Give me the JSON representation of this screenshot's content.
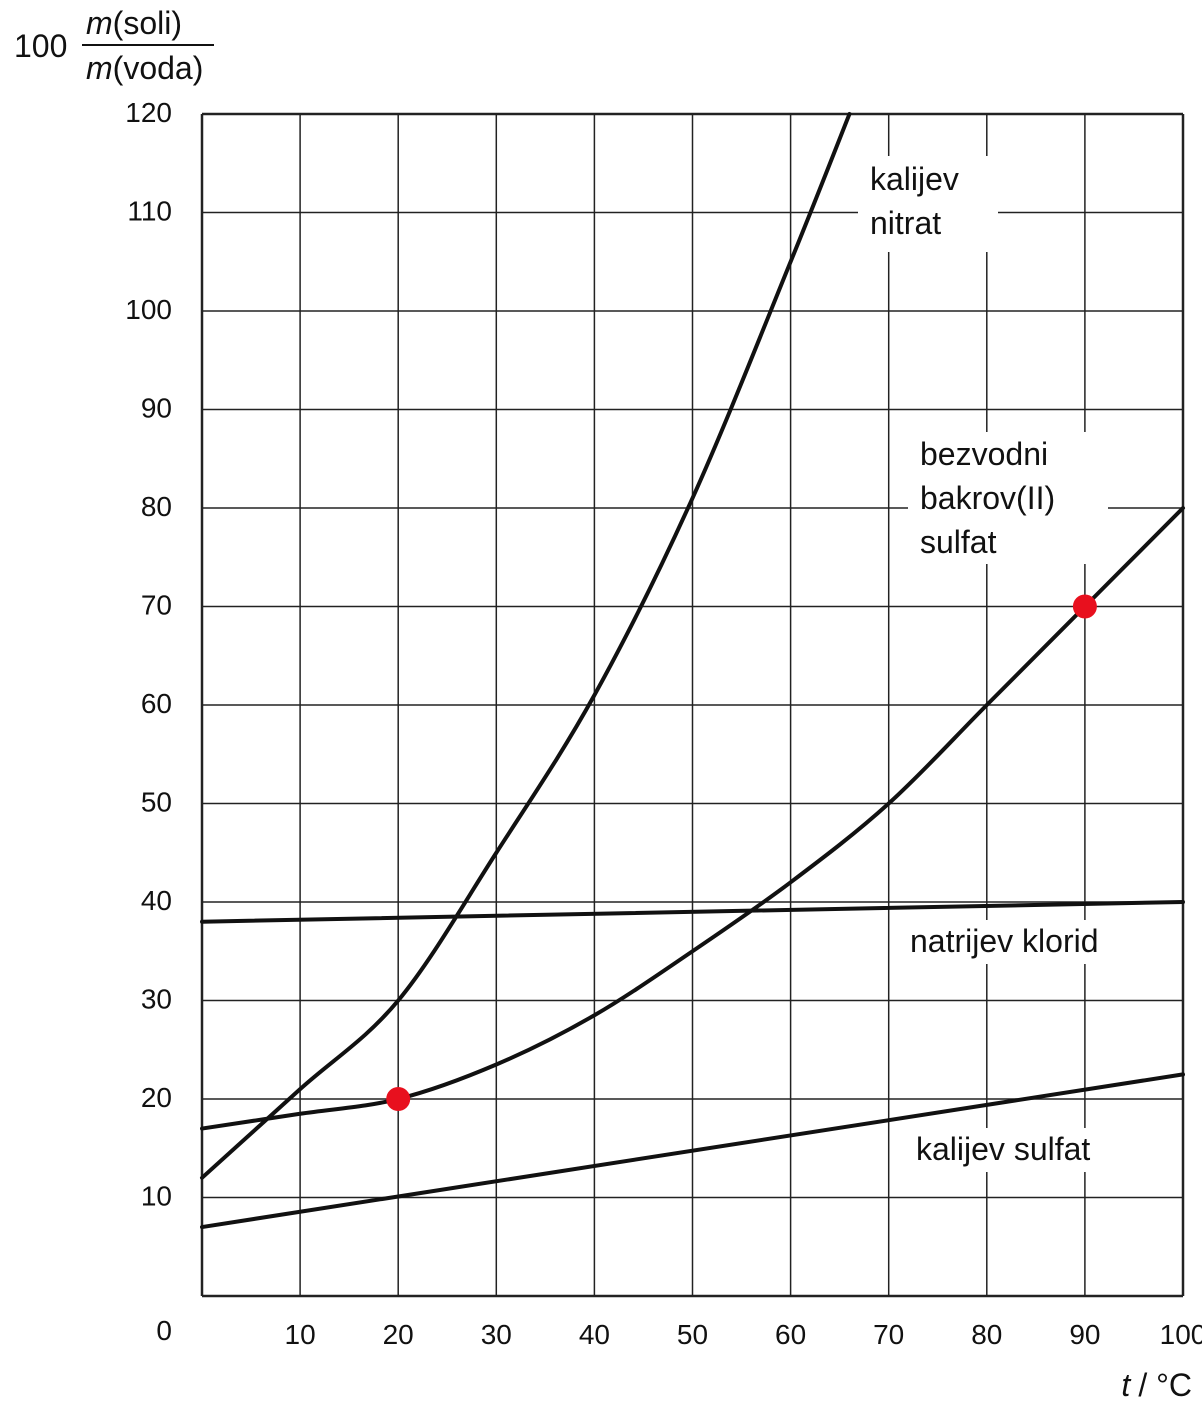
{
  "chart_data": {
    "type": "line",
    "title": "",
    "ylabel": {
      "factor": "100",
      "numerator_var": "m",
      "numerator_rest": "(soli)",
      "denominator_var": "m",
      "denominator_rest": "(voda)"
    },
    "xlabel": {
      "var": "t",
      "unit_text": "/ °C"
    },
    "xlim": [
      0,
      100
    ],
    "ylim": [
      0,
      120
    ],
    "x_ticks": [
      "10",
      "20",
      "30",
      "40",
      "50",
      "60",
      "70",
      "80",
      "90",
      "100"
    ],
    "y_ticks": [
      "0",
      "10",
      "20",
      "30",
      "40",
      "50",
      "60",
      "70",
      "80",
      "90",
      "100",
      "110",
      "120"
    ],
    "grid": true,
    "series": [
      {
        "name": "kalijev nitrat",
        "label_lines": [
          "kalijev",
          "nitrat"
        ],
        "x": [
          0,
          10,
          20,
          30,
          40,
          50,
          60,
          66
        ],
        "y": [
          12,
          21,
          30,
          45,
          61,
          81,
          105,
          120
        ]
      },
      {
        "name": "bezvodni bakrov(II) sulfat",
        "label_lines": [
          "bezvodni",
          "bakrov(II)",
          "sulfat"
        ],
        "x": [
          0,
          10,
          20,
          30,
          40,
          50,
          60,
          70,
          80,
          90,
          100
        ],
        "y": [
          17,
          18.5,
          20,
          23.5,
          28.5,
          35,
          42,
          50,
          60,
          70,
          80
        ]
      },
      {
        "name": "natrijev klorid",
        "label_lines": [
          "natrijev klorid"
        ],
        "x": [
          0,
          100
        ],
        "y": [
          38,
          40
        ]
      },
      {
        "name": "kalijev sulfat",
        "label_lines": [
          "kalijev sulfat"
        ],
        "x": [
          0,
          100
        ],
        "y": [
          7,
          22.5
        ]
      }
    ],
    "highlight_points": [
      {
        "x": 20,
        "y": 20
      },
      {
        "x": 90,
        "y": 70
      }
    ],
    "colors": {
      "line": "#111111",
      "grid": "#222222",
      "marker": "#e8101e"
    }
  }
}
